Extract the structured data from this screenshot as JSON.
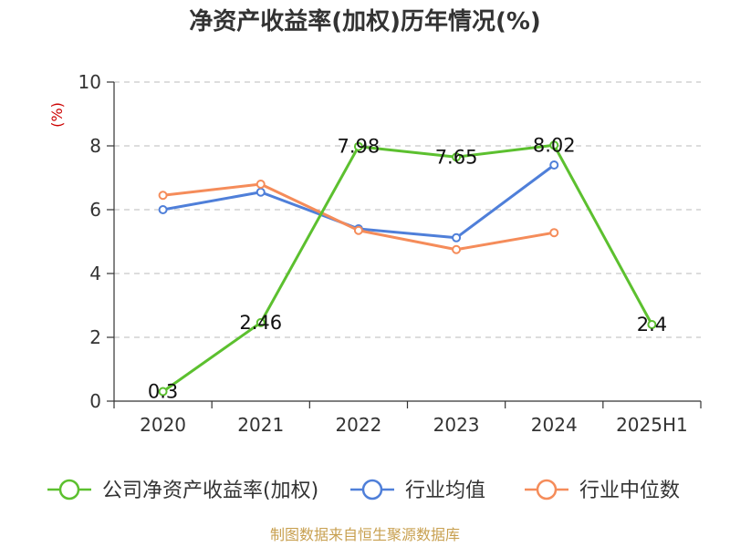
{
  "title": "净资产收益率(加权)历年情况(%)",
  "unit_label": "(%)",
  "source": "制图数据来自恒生聚源数据库",
  "chart_data": {
    "type": "line",
    "categories": [
      "2020",
      "2021",
      "2022",
      "2023",
      "2024",
      "2025H1"
    ],
    "ylim": [
      0,
      10
    ],
    "yticks": [
      0,
      2,
      4,
      6,
      8,
      10
    ],
    "grid": true,
    "legend_position": "bottom",
    "series": [
      {
        "name": "公司净资产收益率(加权)",
        "color": "#5cc02f",
        "values": [
          0.3,
          2.46,
          7.98,
          7.65,
          8.02,
          2.4
        ],
        "labels": [
          "0.3",
          "2.46",
          "7.98",
          "7.65",
          "8.02",
          "2.4"
        ]
      },
      {
        "name": "行业均值",
        "color": "#4f7fd9",
        "values": [
          6.0,
          6.55,
          5.4,
          5.12,
          7.4,
          null
        ]
      },
      {
        "name": "行业中位数",
        "color": "#f58c5a",
        "values": [
          6.45,
          6.8,
          5.35,
          4.75,
          5.28,
          null
        ]
      }
    ]
  }
}
